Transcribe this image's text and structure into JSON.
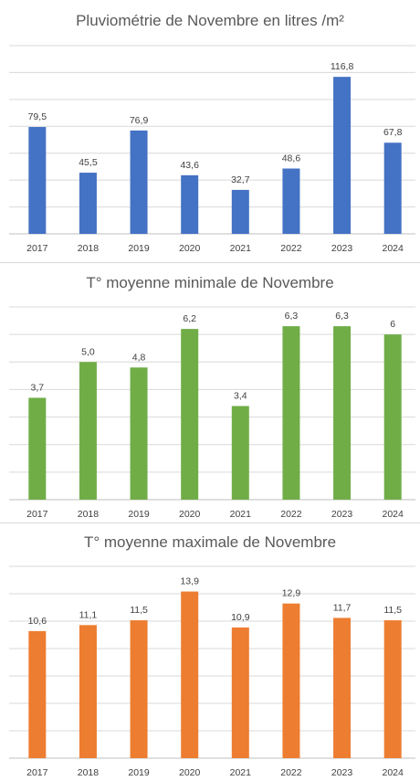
{
  "chart_data": [
    {
      "type": "bar",
      "title": "Pluviométrie de Novembre en litres /m²",
      "categories": [
        "2017",
        "2018",
        "2019",
        "2020",
        "2021",
        "2022",
        "2023",
        "2024"
      ],
      "values": [
        79.5,
        45.5,
        76.9,
        43.6,
        32.7,
        48.6,
        116.8,
        67.8
      ],
      "data_labels": [
        "79,5",
        "45,5",
        "76,9",
        "43,6",
        "32,7",
        "48,6",
        "116,8",
        "67,8"
      ],
      "color": "#4472C4",
      "ylim": [
        0,
        140
      ],
      "grid": true
    },
    {
      "type": "bar",
      "title": "T° moyenne minimale de Novembre",
      "categories": [
        "2017",
        "2018",
        "2019",
        "2020",
        "2021",
        "2022",
        "2023",
        "2024"
      ],
      "values": [
        3.7,
        5.0,
        4.8,
        6.2,
        3.4,
        6.3,
        6.3,
        6
      ],
      "data_labels": [
        "3,7",
        "5,0",
        "4,8",
        "6,2",
        "3,4",
        "6,3",
        "6,3",
        "6"
      ],
      "color": "#70AD47",
      "ylim": [
        0,
        7
      ],
      "grid": true
    },
    {
      "type": "bar",
      "title": "T° moyenne maximale de Novembre",
      "categories": [
        "2017",
        "2018",
        "2019",
        "2020",
        "2021",
        "2022",
        "2023",
        "2024"
      ],
      "values": [
        10.6,
        11.1,
        11.5,
        13.9,
        10.9,
        12.9,
        11.7,
        11.5
      ],
      "data_labels": [
        "10,6",
        "11,1",
        "11,5",
        "13,9",
        "10,9",
        "12,9",
        "11,7",
        "11,5"
      ],
      "color": "#ED7D31",
      "ylim": [
        0,
        16
      ],
      "grid": true
    }
  ]
}
